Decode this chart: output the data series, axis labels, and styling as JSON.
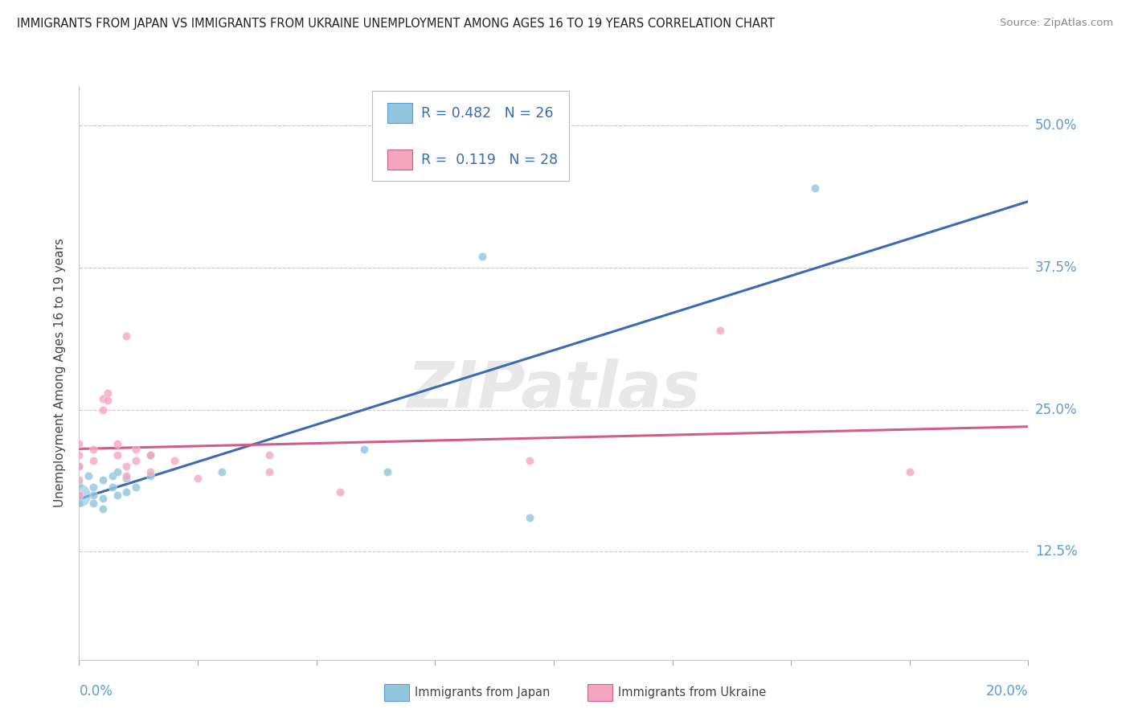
{
  "title": "IMMIGRANTS FROM JAPAN VS IMMIGRANTS FROM UKRAINE UNEMPLOYMENT AMONG AGES 16 TO 19 YEARS CORRELATION CHART",
  "source": "Source: ZipAtlas.com",
  "ylabel": "Unemployment Among Ages 16 to 19 years",
  "ytick_labels": [
    "12.5%",
    "25.0%",
    "37.5%",
    "50.0%"
  ],
  "ytick_values": [
    0.125,
    0.25,
    0.375,
    0.5
  ],
  "xlim": [
    0.0,
    0.2
  ],
  "ylim": [
    0.03,
    0.535
  ],
  "legend_japan": {
    "R": "0.482",
    "N": "26"
  },
  "legend_ukraine": {
    "R": "0.119",
    "N": "28"
  },
  "color_japan": "#92C5DE",
  "color_ukraine": "#F4A6BE",
  "color_trendline_japan": "#3B6AB5",
  "color_trendline_ukraine": "#D45C8A",
  "watermark_text": "ZIPatlas",
  "japan_points": [
    [
      0.0,
      0.2
    ],
    [
      0.0,
      0.185
    ],
    [
      0.0,
      0.175
    ],
    [
      0.0,
      0.168
    ],
    [
      0.002,
      0.192
    ],
    [
      0.003,
      0.182
    ],
    [
      0.003,
      0.175
    ],
    [
      0.003,
      0.168
    ],
    [
      0.005,
      0.188
    ],
    [
      0.005,
      0.172
    ],
    [
      0.005,
      0.163
    ],
    [
      0.007,
      0.192
    ],
    [
      0.007,
      0.182
    ],
    [
      0.008,
      0.195
    ],
    [
      0.008,
      0.175
    ],
    [
      0.01,
      0.19
    ],
    [
      0.01,
      0.178
    ],
    [
      0.012,
      0.182
    ],
    [
      0.015,
      0.21
    ],
    [
      0.015,
      0.192
    ],
    [
      0.03,
      0.195
    ],
    [
      0.06,
      0.215
    ],
    [
      0.065,
      0.195
    ],
    [
      0.085,
      0.385
    ],
    [
      0.095,
      0.155
    ],
    [
      0.155,
      0.445
    ]
  ],
  "ukraine_points": [
    [
      0.0,
      0.22
    ],
    [
      0.0,
      0.21
    ],
    [
      0.0,
      0.2
    ],
    [
      0.0,
      0.188
    ],
    [
      0.0,
      0.175
    ],
    [
      0.003,
      0.215
    ],
    [
      0.003,
      0.205
    ],
    [
      0.005,
      0.26
    ],
    [
      0.005,
      0.25
    ],
    [
      0.006,
      0.265
    ],
    [
      0.006,
      0.258
    ],
    [
      0.008,
      0.22
    ],
    [
      0.008,
      0.21
    ],
    [
      0.01,
      0.315
    ],
    [
      0.01,
      0.2
    ],
    [
      0.01,
      0.192
    ],
    [
      0.012,
      0.215
    ],
    [
      0.012,
      0.205
    ],
    [
      0.015,
      0.21
    ],
    [
      0.015,
      0.195
    ],
    [
      0.02,
      0.205
    ],
    [
      0.025,
      0.19
    ],
    [
      0.04,
      0.21
    ],
    [
      0.04,
      0.195
    ],
    [
      0.055,
      0.178
    ],
    [
      0.095,
      0.205
    ],
    [
      0.135,
      0.32
    ],
    [
      0.175,
      0.195
    ]
  ],
  "japan_large_point": [
    0.0,
    0.175
  ],
  "japan_large_size": 450,
  "japan_point_size": 55,
  "ukraine_point_size": 55
}
